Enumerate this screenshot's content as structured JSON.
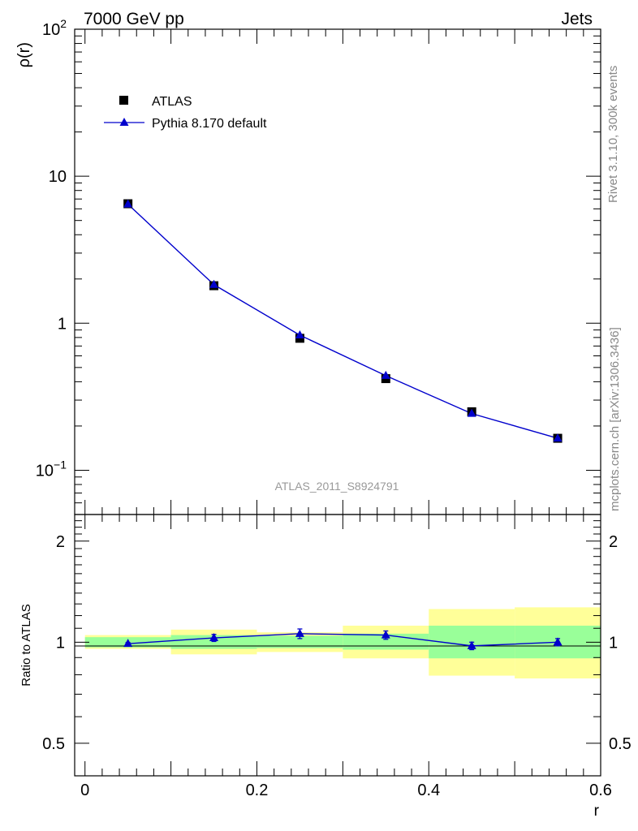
{
  "header": {
    "left": "7000 GeV pp",
    "right": "Jets"
  },
  "side_text": {
    "rivet": "Rivet 3.1.10,  300k events",
    "mcplots": "mcplots.cern.ch [arXiv:1306.3436]"
  },
  "analysis_label": "ATLAS_2011_S8924791",
  "legend": {
    "data_label": "ATLAS",
    "mc_label": "Pythia 8.170 default"
  },
  "colors": {
    "data": "#000000",
    "mc": "#0000cc",
    "band_inner": "#99ff99",
    "band_outer": "#ffff99"
  },
  "chart_data": [
    {
      "type": "scatter",
      "panel": "main",
      "ylabel": "ρ(r)",
      "yscale": "log",
      "ylim": [
        0.05,
        100
      ],
      "xlim": [
        -0.012,
        0.6
      ],
      "y_tick_labels": [
        {
          "value": 100,
          "base": "10",
          "exp": "2"
        },
        {
          "value": 10,
          "base": "10",
          "exp": ""
        },
        {
          "value": 1,
          "base": "1",
          "exp": ""
        },
        {
          "value": 0.1,
          "base": "10",
          "exp": "−1"
        }
      ],
      "x": [
        0.05,
        0.15,
        0.25,
        0.35,
        0.45,
        0.55
      ],
      "series": [
        {
          "name": "ATLAS",
          "marker": "square",
          "values": [
            6.5,
            1.8,
            0.79,
            0.42,
            0.25,
            0.165
          ]
        },
        {
          "name": "Pythia 8.170 default",
          "marker": "triangle",
          "line": true,
          "values": [
            6.45,
            1.83,
            0.83,
            0.44,
            0.243,
            0.165
          ]
        }
      ]
    },
    {
      "type": "scatter",
      "panel": "ratio",
      "ylabel": "Ratio to ATLAS",
      "xlabel": "r",
      "yscale": "log",
      "ylim": [
        0.4,
        2.4
      ],
      "xlim": [
        -0.012,
        0.6
      ],
      "x_tick_labels": [
        "0",
        "0.2",
        "0.4",
        "0.6"
      ],
      "x_tick_values": [
        0,
        0.2,
        0.4,
        0.6
      ],
      "y_tick_labels": [
        "2",
        "1",
        "0.5"
      ],
      "y_tick_values": [
        2,
        1,
        0.5
      ],
      "bands": [
        {
          "x0": 0.0,
          "x1": 0.1,
          "inner": [
            0.965,
            1.035
          ],
          "outer": [
            0.955,
            1.05
          ]
        },
        {
          "x0": 0.1,
          "x1": 0.2,
          "inner": [
            0.955,
            1.05
          ],
          "outer": [
            0.92,
            1.09
          ]
        },
        {
          "x0": 0.2,
          "x1": 0.3,
          "inner": [
            0.96,
            1.045
          ],
          "outer": [
            0.935,
            1.07
          ]
        },
        {
          "x0": 0.3,
          "x1": 0.4,
          "inner": [
            0.95,
            1.06
          ],
          "outer": [
            0.895,
            1.12
          ]
        },
        {
          "x0": 0.4,
          "x1": 0.5,
          "inner": [
            0.895,
            1.12
          ],
          "outer": [
            0.795,
            1.255
          ]
        },
        {
          "x0": 0.5,
          "x1": 0.6,
          "inner": [
            0.895,
            1.12
          ],
          "outer": [
            0.78,
            1.27
          ]
        }
      ],
      "x": [
        0.05,
        0.15,
        0.25,
        0.35,
        0.45,
        0.55
      ],
      "series": [
        {
          "name": "Pythia 8.170 default",
          "values": [
            0.99,
            1.03,
            1.06,
            1.05,
            0.975,
            1.0
          ],
          "err": [
            0.008,
            0.025,
            0.035,
            0.03,
            0.025,
            0.025
          ]
        }
      ]
    }
  ]
}
